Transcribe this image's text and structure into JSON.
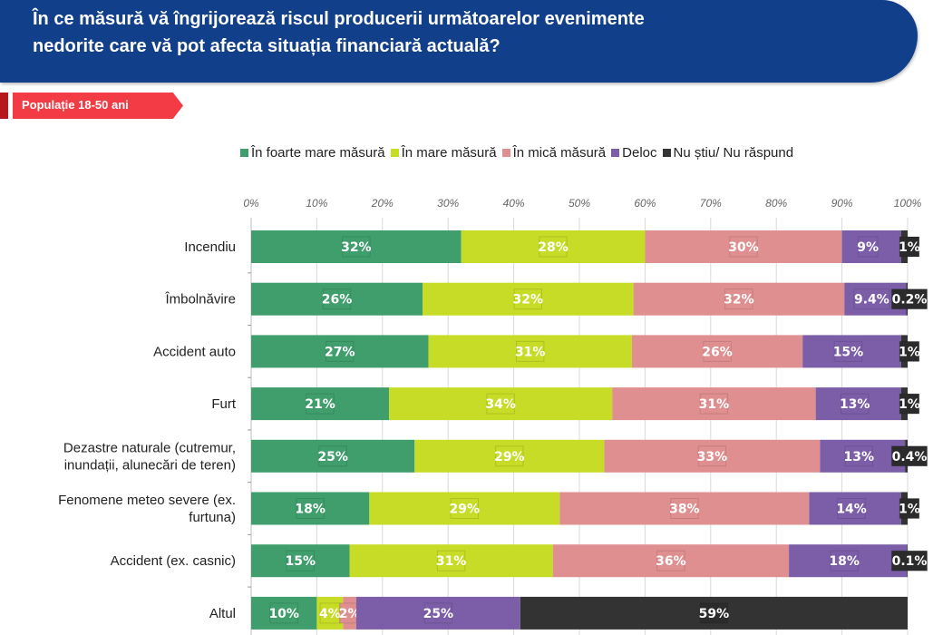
{
  "header": {
    "title": "În ce măsură vă îngrijorează riscul producerii următoarelor evenimente\nnedorite care vă pot afecta situația financiară actuală?"
  },
  "tag": {
    "label": "Populație 18-50 ani"
  },
  "colors": {
    "header_bg": "#123f8a",
    "tag_bg": "#f23b45",
    "tag_dark": "#b8161d"
  },
  "chart_data": {
    "type": "bar",
    "orientation": "horizontal",
    "stacked": true,
    "percent_stacked": true,
    "title": "În ce măsură vă îngrijorează riscul producerii următoarelor evenimente nedorite care vă pot afecta situația financiară actuală?",
    "subtitle": "Populație 18-50 ani",
    "xlabel": "",
    "ylabel": "",
    "xlim": [
      0,
      100
    ],
    "x_ticks": [
      "0%",
      "10%",
      "20%",
      "30%",
      "40%",
      "50%",
      "60%",
      "70%",
      "80%",
      "90%",
      "100%"
    ],
    "grid": true,
    "legend_position": "top",
    "categories": [
      "Incendiu",
      "Îmbolnăvire",
      "Accident auto",
      "Furt",
      "Dezastre naturale (cutremur,\ninundații, alunecări de teren)",
      "Fenomene meteo severe (ex.\nfurtuna)",
      "Accident (ex. casnic)",
      "Altul"
    ],
    "series": [
      {
        "name": "În foarte mare măsură",
        "color": "#3f9e6c",
        "values": [
          32,
          26,
          27,
          21,
          25,
          18,
          15,
          10
        ],
        "labels": [
          "32%",
          "26%",
          "27%",
          "21%",
          "25%",
          "18%",
          "15%",
          "10%"
        ]
      },
      {
        "name": "În mare măsură",
        "color": "#c6dc26",
        "values": [
          28,
          32,
          31,
          34,
          29,
          29,
          31,
          4
        ],
        "labels": [
          "28%",
          "32%",
          "31%",
          "34%",
          "29%",
          "29%",
          "31%",
          "4%"
        ]
      },
      {
        "name": "În mică măsură",
        "color": "#e08f90",
        "values": [
          30,
          32,
          26,
          31,
          33,
          38,
          36,
          2
        ],
        "labels": [
          "30%",
          "32%",
          "26%",
          "31%",
          "33%",
          "38%",
          "36%",
          "2%"
        ]
      },
      {
        "name": "Deloc",
        "color": "#7c5ea8",
        "values": [
          9,
          9.4,
          15,
          13,
          13,
          14,
          18,
          25
        ],
        "labels": [
          "9%",
          "9.4%",
          "15%",
          "13%",
          "13%",
          "14%",
          "18%",
          "25%"
        ]
      },
      {
        "name": "Nu știu/ Nu răspund",
        "color": "#333333",
        "values": [
          1,
          0.2,
          1,
          1,
          0.4,
          1,
          0.1,
          59
        ],
        "labels": [
          "1%",
          "0.2%",
          "1%",
          "1%",
          "0.4%",
          "1%",
          "0.1%",
          "59%"
        ]
      }
    ]
  }
}
